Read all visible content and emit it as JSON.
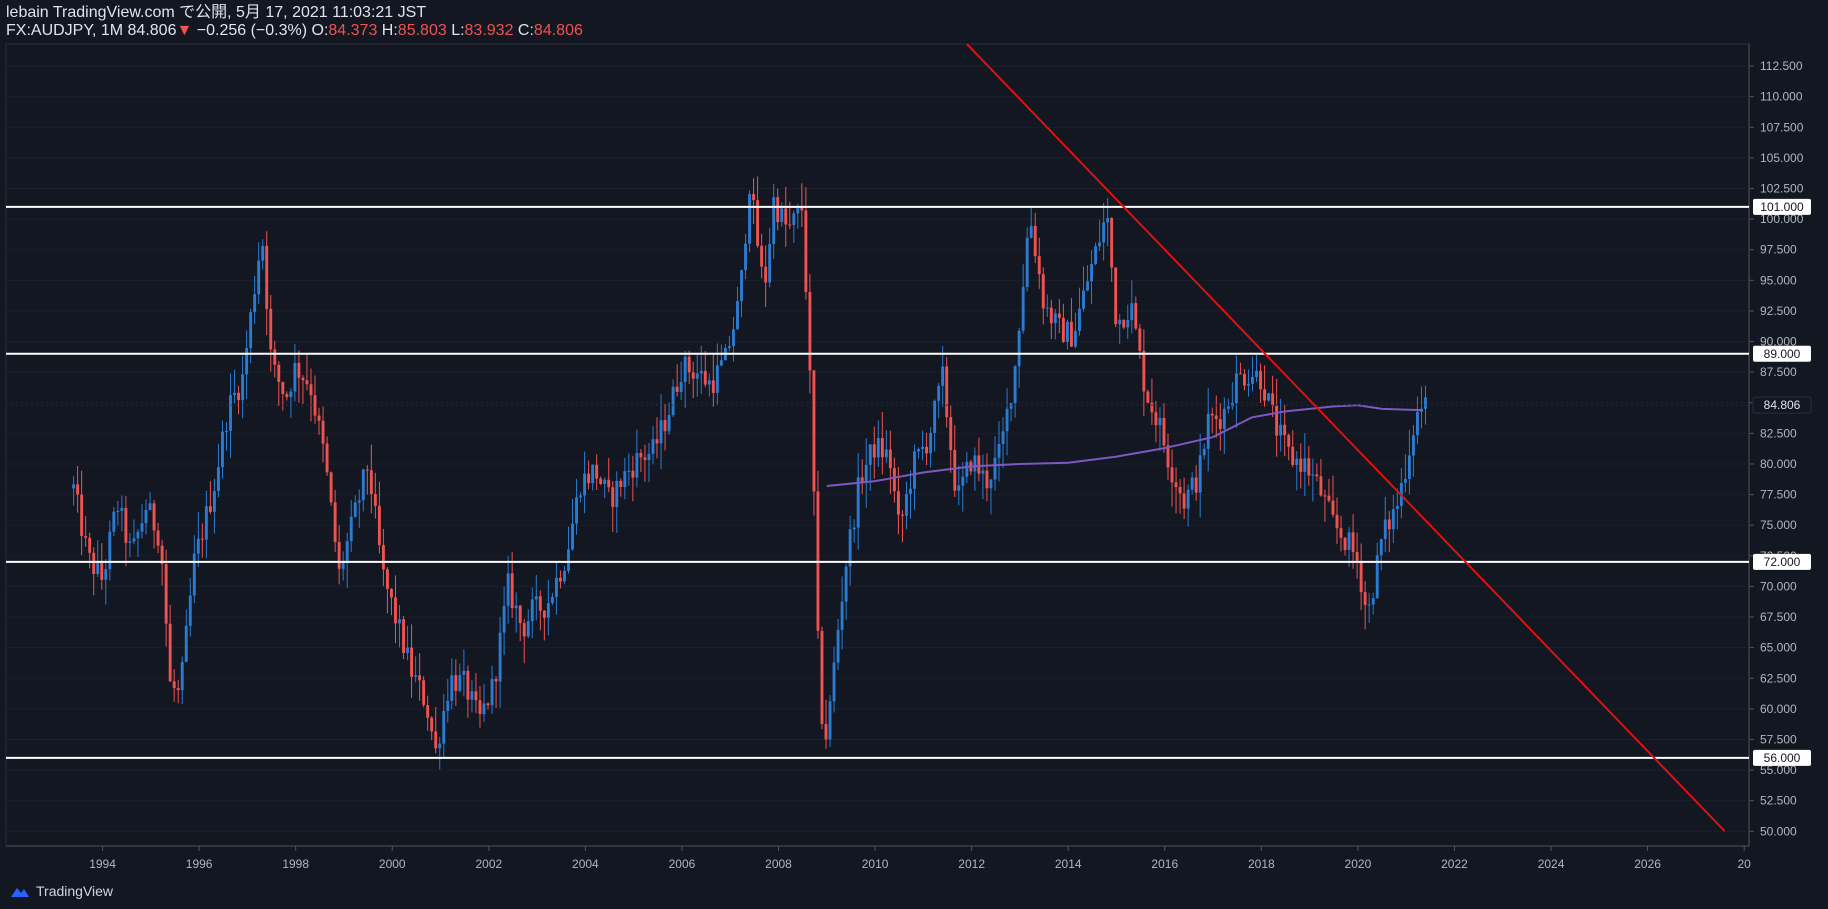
{
  "header": {
    "published": "lebain TradingView.com で公開, 5月 17, 2021 11:03:21 JST",
    "symbol": "FX:AUDJPY, 1M",
    "last": "84.806",
    "change_arrow": "▼",
    "change": "−0.256 (−0.3%)",
    "o_label": "O:",
    "o_val": "84.373",
    "h_label": "H:",
    "h_val": "85.803",
    "l_label": "L:",
    "l_val": "83.932",
    "c_label": "C:",
    "c_val": "84.806"
  },
  "footer": {
    "brand": "TradingView"
  },
  "colors": {
    "background": "#131722",
    "up": "#2a7bd1",
    "down": "#ef5350",
    "ma": "#7e57c2",
    "trendline": "#e01010",
    "level": "#ffffff",
    "axis_text": "#b2b5be"
  },
  "chart_data": {
    "type": "candlestick",
    "timeframe": "1M",
    "x_ticks": [
      "1994",
      "1996",
      "1998",
      "2000",
      "2002",
      "2004",
      "2006",
      "2008",
      "2010",
      "2012",
      "2014",
      "2016",
      "2018",
      "2020",
      "2022",
      "2024",
      "2026",
      "20"
    ],
    "y_ticks": [
      "112.500",
      "110.000",
      "107.500",
      "105.000",
      "102.500",
      "100.000",
      "97.500",
      "95.000",
      "92.500",
      "90.000",
      "87.500",
      "85.000",
      "82.500",
      "80.000",
      "77.500",
      "75.000",
      "72.500",
      "70.000",
      "67.500",
      "65.000",
      "62.500",
      "60.000",
      "57.500",
      "55.000",
      "52.500",
      "50.000"
    ],
    "xlim": [
      1992.0,
      2028.1
    ],
    "ylim": [
      48.8,
      114.3
    ],
    "horizontal_levels": [
      {
        "value": 101.0,
        "label": "101.000"
      },
      {
        "value": 89.0,
        "label": "89.000"
      },
      {
        "value": 72.0,
        "label": "72.000"
      },
      {
        "value": 56.0,
        "label": "56.000"
      }
    ],
    "current_price": {
      "value": 84.806,
      "label": "84.806"
    },
    "trendline": [
      [
        2011.9,
        114.3
      ],
      [
        2027.6,
        50.0
      ]
    ],
    "moving_average": [
      [
        2009.0,
        78.2
      ],
      [
        2010.0,
        78.6
      ],
      [
        2011.0,
        79.3
      ],
      [
        2012.0,
        79.8
      ],
      [
        2013.0,
        80.0
      ],
      [
        2014.0,
        80.1
      ],
      [
        2015.0,
        80.6
      ],
      [
        2016.0,
        81.3
      ],
      [
        2017.0,
        82.2
      ],
      [
        2017.8,
        83.8
      ],
      [
        2018.5,
        84.3
      ],
      [
        2019.5,
        84.7
      ],
      [
        2020.0,
        84.8
      ],
      [
        2020.5,
        84.5
      ],
      [
        2021.3,
        84.4
      ]
    ],
    "price_path": [
      [
        1993.4,
        78.0
      ],
      [
        1993.7,
        72.3
      ],
      [
        1994.0,
        70.5
      ],
      [
        1994.3,
        76.8
      ],
      [
        1994.6,
        72.5
      ],
      [
        1994.9,
        76.5
      ],
      [
        1995.2,
        74.0
      ],
      [
        1995.4,
        62.0
      ],
      [
        1995.6,
        61.0
      ],
      [
        1995.9,
        72.0
      ],
      [
        1996.3,
        78.0
      ],
      [
        1996.6,
        84.5
      ],
      [
        1996.9,
        87.0
      ],
      [
        1997.3,
        99.0
      ],
      [
        1997.5,
        88.0
      ],
      [
        1997.8,
        85.5
      ],
      [
        1998.0,
        88.0
      ],
      [
        1998.3,
        86.5
      ],
      [
        1998.6,
        80.5
      ],
      [
        1998.9,
        71.0
      ],
      [
        1999.2,
        75.5
      ],
      [
        1999.5,
        80.0
      ],
      [
        1999.8,
        71.0
      ],
      [
        2000.1,
        67.0
      ],
      [
        2000.4,
        63.0
      ],
      [
        2000.7,
        60.5
      ],
      [
        2000.9,
        56.5
      ],
      [
        2001.2,
        62.5
      ],
      [
        2001.5,
        62.0
      ],
      [
        2001.8,
        59.0
      ],
      [
        2002.1,
        62.0
      ],
      [
        2002.4,
        70.0
      ],
      [
        2002.7,
        66.5
      ],
      [
        2002.9,
        68.0
      ],
      [
        2003.2,
        68.5
      ],
      [
        2003.6,
        72.5
      ],
      [
        2003.9,
        78.5
      ],
      [
        2004.2,
        79.5
      ],
      [
        2004.5,
        77.0
      ],
      [
        2004.8,
        79.0
      ],
      [
        2005.1,
        80.5
      ],
      [
        2005.4,
        81.0
      ],
      [
        2005.7,
        84.0
      ],
      [
        2006.0,
        88.0
      ],
      [
        2006.3,
        87.5
      ],
      [
        2006.6,
        86.5
      ],
      [
        2006.9,
        88.5
      ],
      [
        2007.2,
        93.5
      ],
      [
        2007.4,
        103.0
      ],
      [
        2007.7,
        94.0
      ],
      [
        2007.9,
        101.5
      ],
      [
        2008.2,
        99.0
      ],
      [
        2008.5,
        101.0
      ],
      [
        2008.7,
        82.0
      ],
      [
        2008.85,
        60.5
      ],
      [
        2009.0,
        57.5
      ],
      [
        2009.2,
        65.5
      ],
      [
        2009.4,
        72.0
      ],
      [
        2009.7,
        79.0
      ],
      [
        2010.0,
        81.5
      ],
      [
        2010.3,
        80.5
      ],
      [
        2010.5,
        74.5
      ],
      [
        2010.8,
        80.0
      ],
      [
        2011.1,
        82.0
      ],
      [
        2011.4,
        87.0
      ],
      [
        2011.7,
        77.0
      ],
      [
        2012.0,
        80.5
      ],
      [
        2012.3,
        78.5
      ],
      [
        2012.6,
        81.0
      ],
      [
        2012.9,
        88.0
      ],
      [
        2013.2,
        100.5
      ],
      [
        2013.5,
        93.0
      ],
      [
        2013.8,
        91.0
      ],
      [
        2014.1,
        90.5
      ],
      [
        2014.4,
        95.0
      ],
      [
        2014.8,
        100.5
      ],
      [
        2015.0,
        91.5
      ],
      [
        2015.3,
        93.0
      ],
      [
        2015.6,
        86.0
      ],
      [
        2015.9,
        83.0
      ],
      [
        2016.1,
        80.0
      ],
      [
        2016.4,
        77.0
      ],
      [
        2016.7,
        79.0
      ],
      [
        2016.9,
        83.5
      ],
      [
        2017.2,
        84.0
      ],
      [
        2017.5,
        87.0
      ],
      [
        2017.8,
        87.5
      ],
      [
        2018.0,
        87.0
      ],
      [
        2018.3,
        83.0
      ],
      [
        2018.6,
        80.5
      ],
      [
        2018.9,
        80.0
      ],
      [
        2019.2,
        78.0
      ],
      [
        2019.5,
        75.0
      ],
      [
        2019.8,
        73.5
      ],
      [
        2020.0,
        72.0
      ],
      [
        2020.2,
        67.5
      ],
      [
        2020.5,
        74.0
      ],
      [
        2020.8,
        76.5
      ],
      [
        2021.0,
        80.0
      ],
      [
        2021.2,
        84.0
      ],
      [
        2021.4,
        84.8
      ]
    ]
  }
}
